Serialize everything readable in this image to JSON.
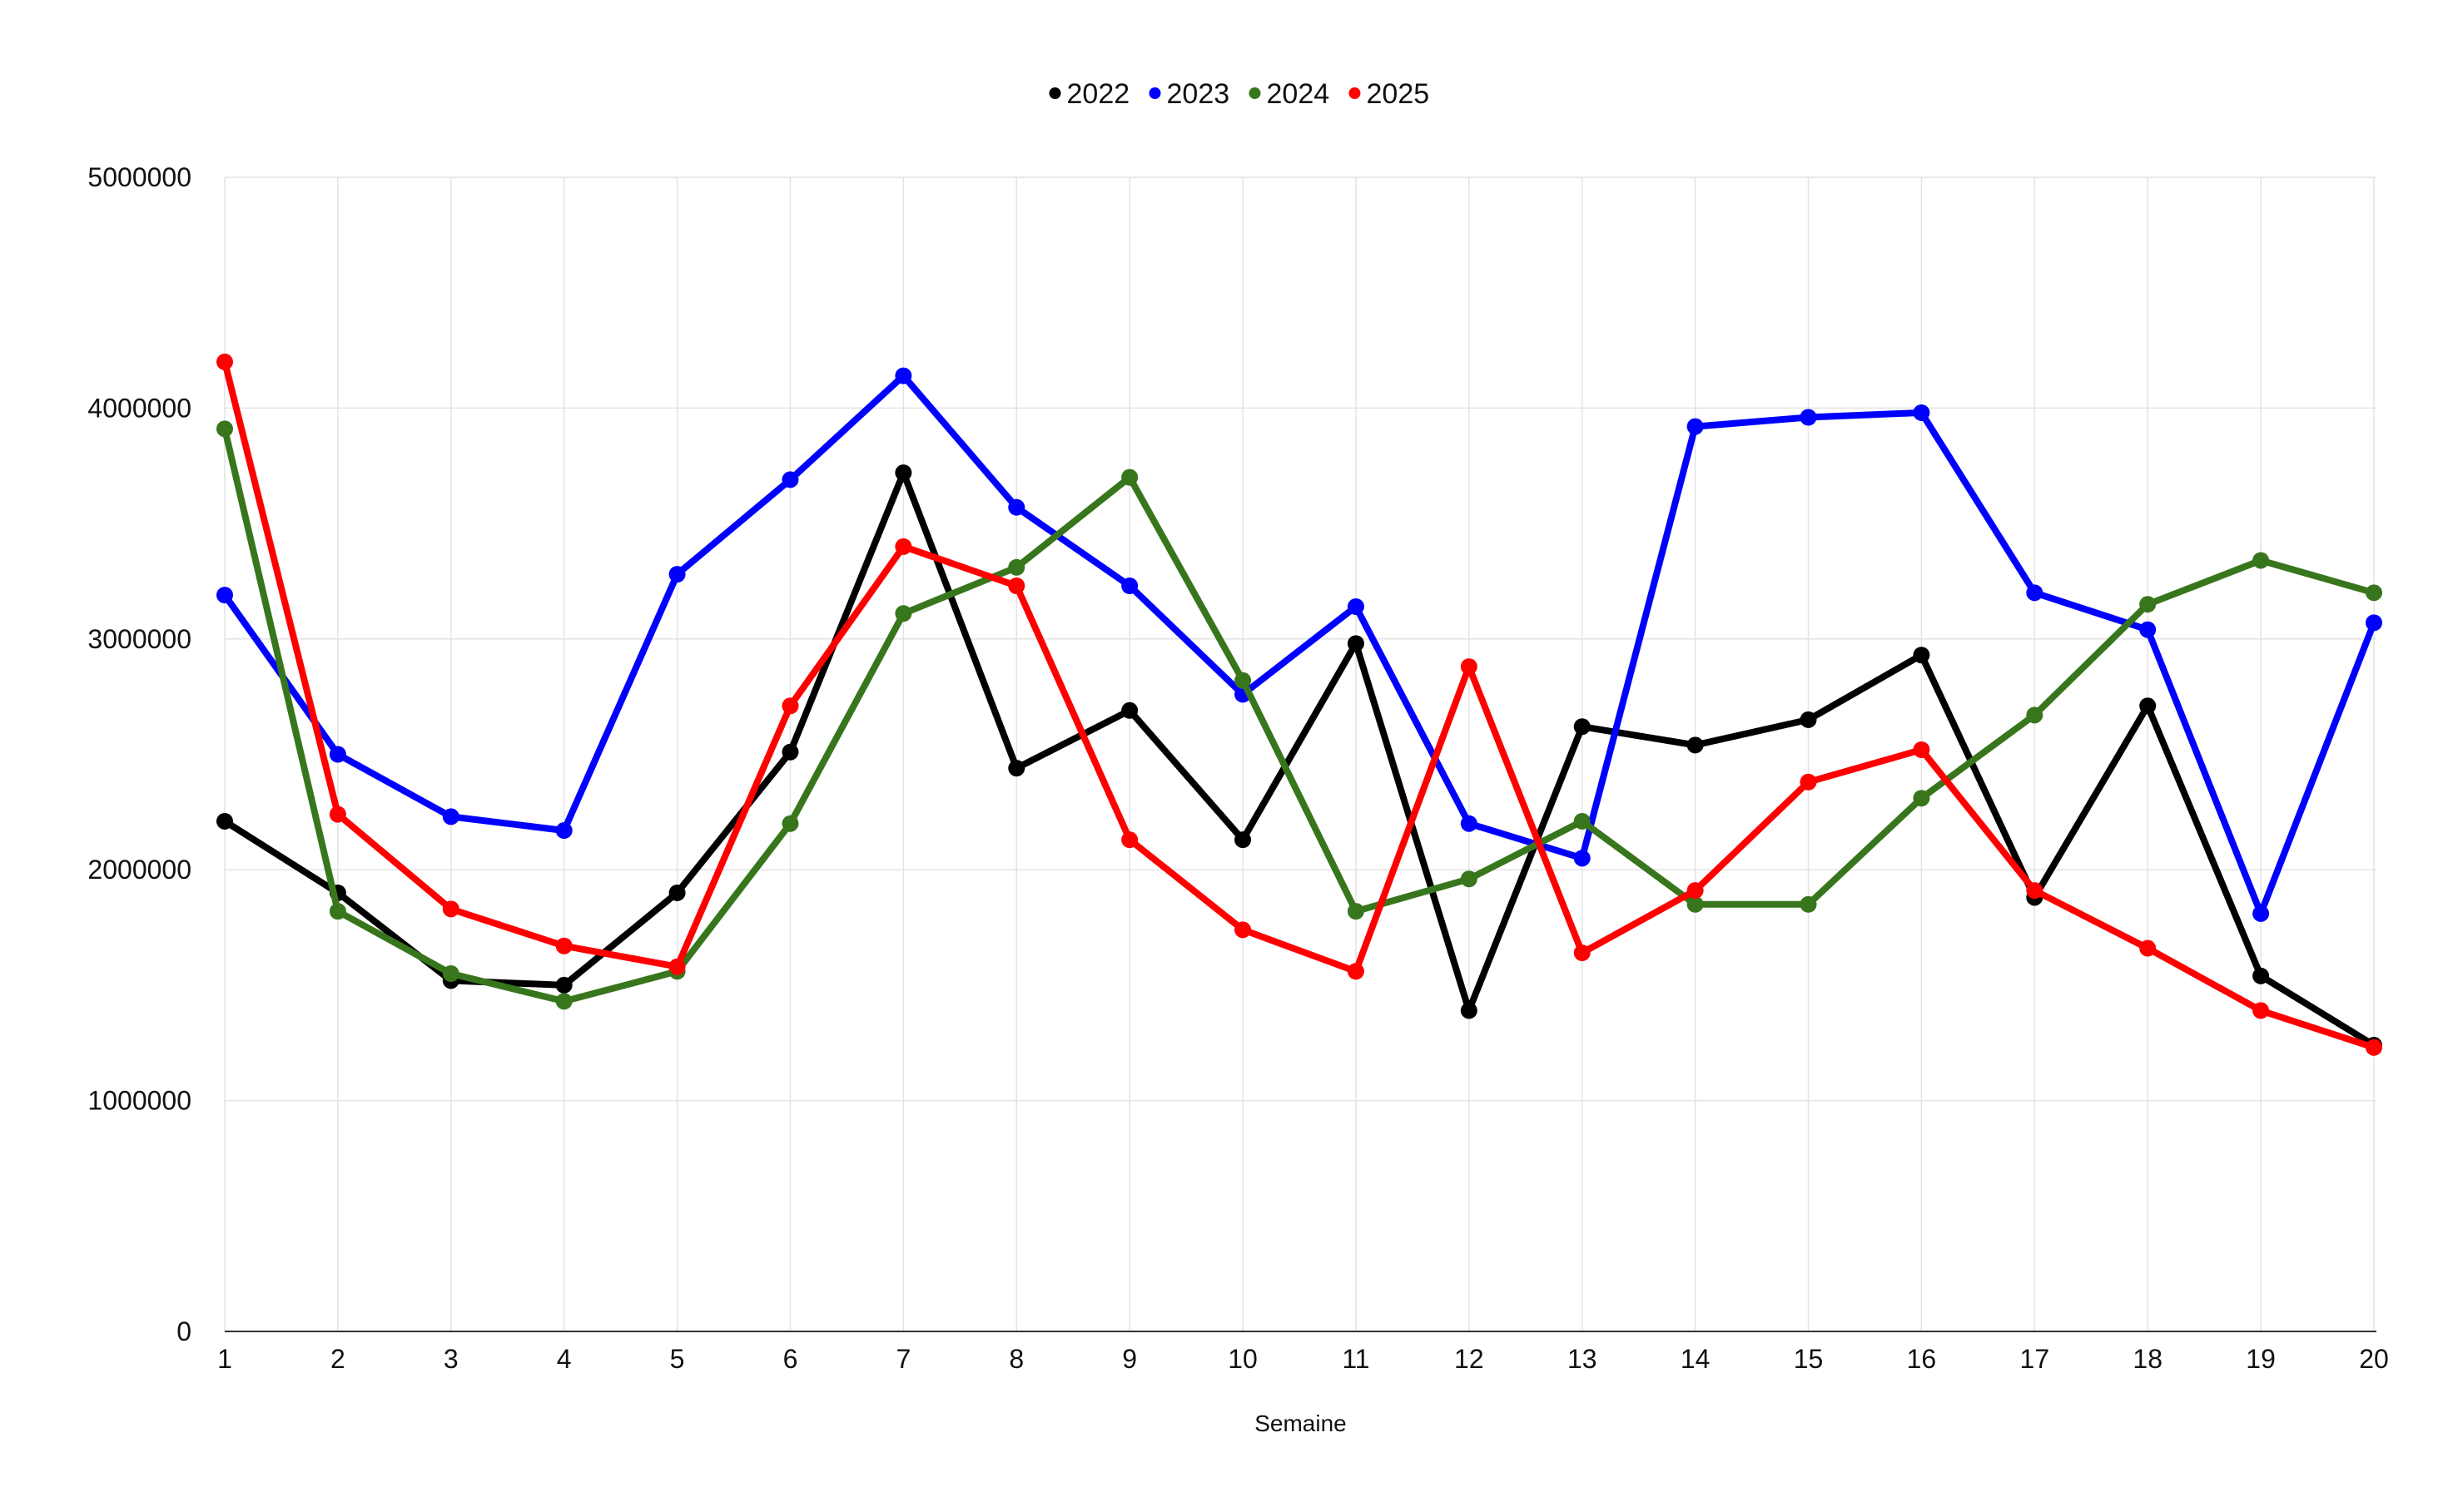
{
  "chart_data": {
    "type": "line",
    "title": "",
    "xlabel": "Semaine",
    "ylabel": "",
    "x": [
      1,
      2,
      3,
      4,
      5,
      6,
      7,
      8,
      9,
      10,
      11,
      12,
      13,
      14,
      15,
      16,
      17,
      18,
      19,
      20
    ],
    "x_tick_labels": [
      "1",
      "2",
      "3",
      "4",
      "5",
      "6",
      "7",
      "8",
      "9",
      "10",
      "11",
      "12",
      "13",
      "14",
      "15",
      "16",
      "17",
      "18",
      "19",
      "20"
    ],
    "ylim": [
      0,
      5000000
    ],
    "y_ticks": [
      0,
      1000000,
      2000000,
      3000000,
      4000000,
      5000000
    ],
    "y_tick_labels": [
      "0",
      "1000000",
      "2000000",
      "3000000",
      "4000000",
      "5000000"
    ],
    "grid": true,
    "legend_position": "top-center",
    "series": [
      {
        "name": "2022",
        "color": "#000000",
        "values": [
          2210000,
          1900000,
          1520000,
          1500000,
          1900000,
          2510000,
          3720000,
          2440000,
          2690000,
          2130000,
          2980000,
          1390000,
          2620000,
          2540000,
          2650000,
          2930000,
          1880000,
          2710000,
          1540000,
          1240000
        ]
      },
      {
        "name": "2023",
        "color": "#0000ff",
        "values": [
          3190000,
          2500000,
          2230000,
          2170000,
          3280000,
          3690000,
          4140000,
          3570000,
          3230000,
          2760000,
          3140000,
          2200000,
          2050000,
          3920000,
          3960000,
          3980000,
          3200000,
          3040000,
          1810000,
          3070000
        ]
      },
      {
        "name": "2024",
        "color": "#38761d",
        "values": [
          3910000,
          1820000,
          1550000,
          1430000,
          1560000,
          2200000,
          3110000,
          3310000,
          3700000,
          2820000,
          1820000,
          1960000,
          2210000,
          1850000,
          1850000,
          2310000,
          2670000,
          3150000,
          3340000,
          3200000
        ]
      },
      {
        "name": "2025",
        "color": "#ff0000",
        "values": [
          4200000,
          2240000,
          1830000,
          1670000,
          1580000,
          2710000,
          3400000,
          3230000,
          2130000,
          1740000,
          1560000,
          2880000,
          1640000,
          1910000,
          2380000,
          2520000,
          1910000,
          1660000,
          1390000,
          1230000
        ]
      }
    ]
  }
}
